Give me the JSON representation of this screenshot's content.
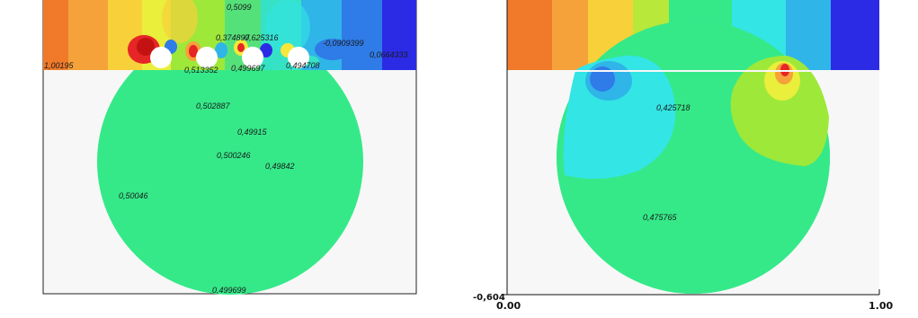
{
  "left_plot": {
    "labels": [
      "0,5099",
      "0,374897",
      "0,625316",
      "-0,0909399",
      "0,0664333",
      "1,00195",
      "0,513352",
      "0,499697",
      "0,494708",
      "0,502887",
      "0,49915",
      "0,500246",
      "0,49842",
      "0,50046",
      "0,499699"
    ]
  },
  "right_plot": {
    "labels": [
      "0,425718",
      "0,475765"
    ],
    "axis": {
      "x_min": "0.00",
      "x_max": "1.00",
      "y_min": "-0,604"
    }
  },
  "colors": {
    "green": "#35e989",
    "blue": "#2b2be6",
    "red": "#e62626",
    "orange": "#f07a2a",
    "yellow": "#f5e83a",
    "cyan": "#33e5e5",
    "background": "#f7f7f7"
  }
}
